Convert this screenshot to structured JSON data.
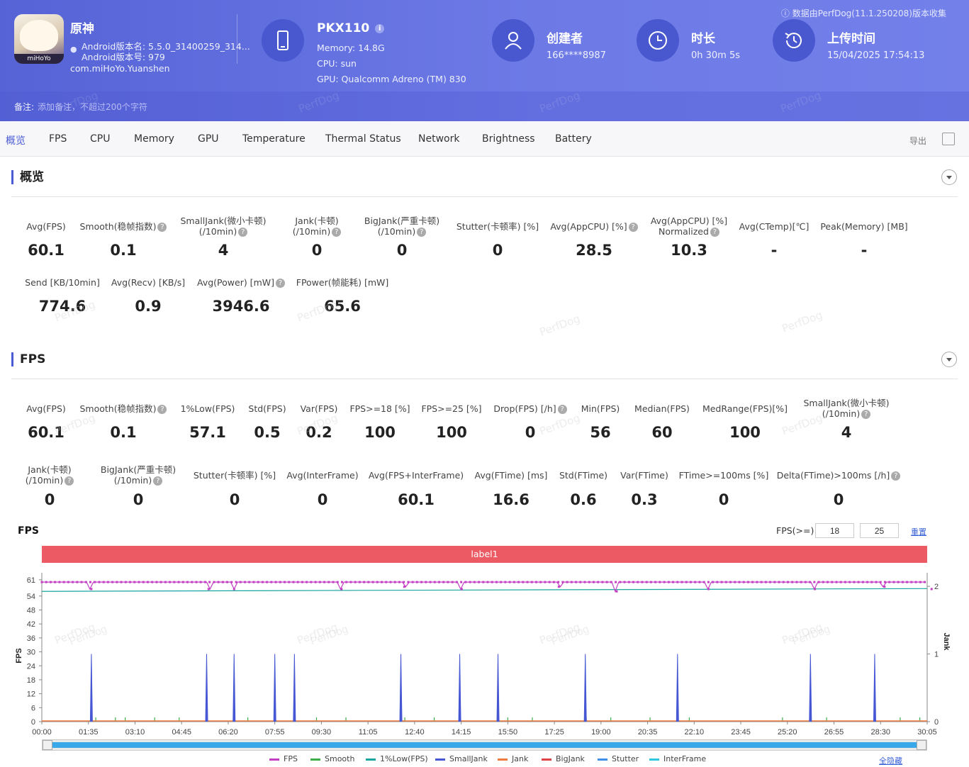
{
  "header": {
    "notice": "数据由PerfDog(11.1.250208)版本收集",
    "app": {
      "name": "原神",
      "version_name": "Android版本名: 5.5.0_31400259_314...",
      "version_code": "Android版本号: 979",
      "package": "com.miHoYo.Yuanshen",
      "icon_logo": "miHoYo"
    },
    "device": {
      "model": "PKX110",
      "memory": "Memory: 14.8G",
      "cpu": "CPU: sun",
      "gpu": "GPU: Qualcomm Adreno (TM) 830"
    },
    "creator": {
      "label": "创建者",
      "value": "166****8987"
    },
    "duration": {
      "label": "时长",
      "value": "0h 30m 5s"
    },
    "upload": {
      "label": "上传时间",
      "value": "15/04/2025 17:54:13"
    },
    "remark_label": "备注:",
    "remark_placeholder": "添加备注，不超过200个字符",
    "watermark": "PerfDog"
  },
  "tabs": [
    "概览",
    "FPS",
    "CPU",
    "Memory",
    "GPU",
    "Temperature",
    "Thermal Status",
    "Network",
    "Brightness",
    "Battery"
  ],
  "export_label": "导出",
  "overview": {
    "title": "概览",
    "metrics": [
      {
        "label": "Avg(FPS)",
        "value": "60.1"
      },
      {
        "label": "Smooth(稳帧指数)",
        "value": "0.1"
      },
      {
        "label": "SmallJank(微小卡顿)",
        "label2": "(/10min)",
        "value": "4"
      },
      {
        "label": "Jank(卡顿)",
        "label2": "(/10min)",
        "value": "0"
      },
      {
        "label": "BigJank(严重卡顿)",
        "label2": "(/10min)",
        "value": "0"
      },
      {
        "label": "Stutter(卡顿率) [%]",
        "value": "0"
      },
      {
        "label": "Avg(AppCPU) [%]",
        "value": "28.5"
      },
      {
        "label": "Avg(AppCPU) [%]",
        "label2": "Normalized",
        "value": "10.3"
      },
      {
        "label": "Avg(CTemp)[℃]",
        "value": "-"
      },
      {
        "label": "Peak(Memory) [MB]",
        "value": "-"
      },
      {
        "label": "Send [KB/10min]",
        "value": "774.6"
      },
      {
        "label": "Avg(Recv) [KB/s]",
        "value": "0.9"
      },
      {
        "label": "Avg(Power) [mW]",
        "value": "3946.6"
      },
      {
        "label": "FPower(帧能耗) [mW]",
        "value": "65.6"
      }
    ]
  },
  "fps": {
    "title": "FPS",
    "metrics": [
      {
        "label": "Avg(FPS)",
        "value": "60.1"
      },
      {
        "label": "Smooth(稳帧指数)",
        "value": "0.1"
      },
      {
        "label": "1%Low(FPS)",
        "value": "57.1"
      },
      {
        "label": "Std(FPS)",
        "value": "0.5"
      },
      {
        "label": "Var(FPS)",
        "value": "0.2"
      },
      {
        "label": "FPS>=18 [%]",
        "value": "100"
      },
      {
        "label": "FPS>=25 [%]",
        "value": "100"
      },
      {
        "label": "Drop(FPS) [/h]",
        "value": "0"
      },
      {
        "label": "Min(FPS)",
        "value": "56"
      },
      {
        "label": "Median(FPS)",
        "value": "60"
      },
      {
        "label": "MedRange(FPS)[%]",
        "value": "100"
      },
      {
        "label": "SmallJank(微小卡顿)",
        "label2": "(/10min)",
        "value": "4"
      },
      {
        "label": "Jank(卡顿)",
        "label2": "(/10min)",
        "value": "0"
      },
      {
        "label": "BigJank(严重卡顿)",
        "label2": "(/10min)",
        "value": "0"
      },
      {
        "label": "Stutter(卡顿率) [%]",
        "value": "0"
      },
      {
        "label": "Avg(InterFrame)",
        "value": "0"
      },
      {
        "label": "Avg(FPS+InterFrame)",
        "value": "60.1"
      },
      {
        "label": "Avg(FTime) [ms]",
        "value": "16.6"
      },
      {
        "label": "Std(FTime)",
        "value": "0.6"
      },
      {
        "label": "Var(FTime)",
        "value": "0.3"
      },
      {
        "label": "FTime>=100ms [%]",
        "value": "0"
      },
      {
        "label": "Delta(FTime)>100ms [/h]",
        "value": "0"
      }
    ],
    "chart_title": "FPS",
    "threshold_label": "FPS(>=)",
    "threshold_1": "18",
    "threshold_2": "25",
    "reset_label": "重置",
    "label_bar": "label1",
    "hide_all_label": "全隐藏"
  },
  "chart_data": {
    "type": "line",
    "title": "FPS",
    "xlabel": "",
    "ylabel": "FPS",
    "y2label": "Jank",
    "x_ticks": [
      "00:00",
      "01:35",
      "03:10",
      "04:45",
      "06:20",
      "07:55",
      "09:30",
      "11:05",
      "12:40",
      "14:15",
      "15:50",
      "17:25",
      "19:00",
      "20:35",
      "22:10",
      "23:45",
      "25:20",
      "26:55",
      "28:30",
      "30:05"
    ],
    "y_ticks": [
      0,
      6,
      12,
      18,
      24,
      30,
      36,
      42,
      48,
      54,
      61
    ],
    "y2_ticks": [
      0,
      1,
      2
    ],
    "ylim": [
      0,
      64
    ],
    "y2lim": [
      0,
      2.2
    ],
    "xlim_seconds": [
      0,
      1805
    ],
    "series": [
      {
        "name": "FPS",
        "color": "#c43ec4",
        "baseline": 60,
        "dips": [
          [
            101,
            57
          ],
          [
            340,
            57
          ],
          [
            392,
            57
          ],
          [
            611,
            57
          ],
          [
            739,
            58
          ],
          [
            856,
            57
          ],
          [
            1054,
            58
          ],
          [
            1172,
            56
          ],
          [
            1359,
            57
          ],
          [
            1576,
            57
          ],
          [
            1718,
            58
          ],
          [
            1814,
            57
          ]
        ]
      },
      {
        "name": "Smooth",
        "color": "#3fae49",
        "values_note": "near 0"
      },
      {
        "name": "1%Low(FPS)",
        "color": "#19a5a0",
        "start": 56,
        "end": 57.2
      },
      {
        "name": "SmallJank",
        "color": "#4657d4",
        "spikes_seconds": [
          101,
          336,
          392,
          475,
          515,
          732,
          852,
          930,
          1108,
          1296,
          1567,
          1698
        ]
      },
      {
        "name": "Jank",
        "color": "#f07b3f"
      },
      {
        "name": "BigJank",
        "color": "#e04343"
      },
      {
        "name": "Stutter",
        "color": "#3f8ee8"
      },
      {
        "name": "InterFrame",
        "color": "#2ec7e0"
      }
    ]
  }
}
